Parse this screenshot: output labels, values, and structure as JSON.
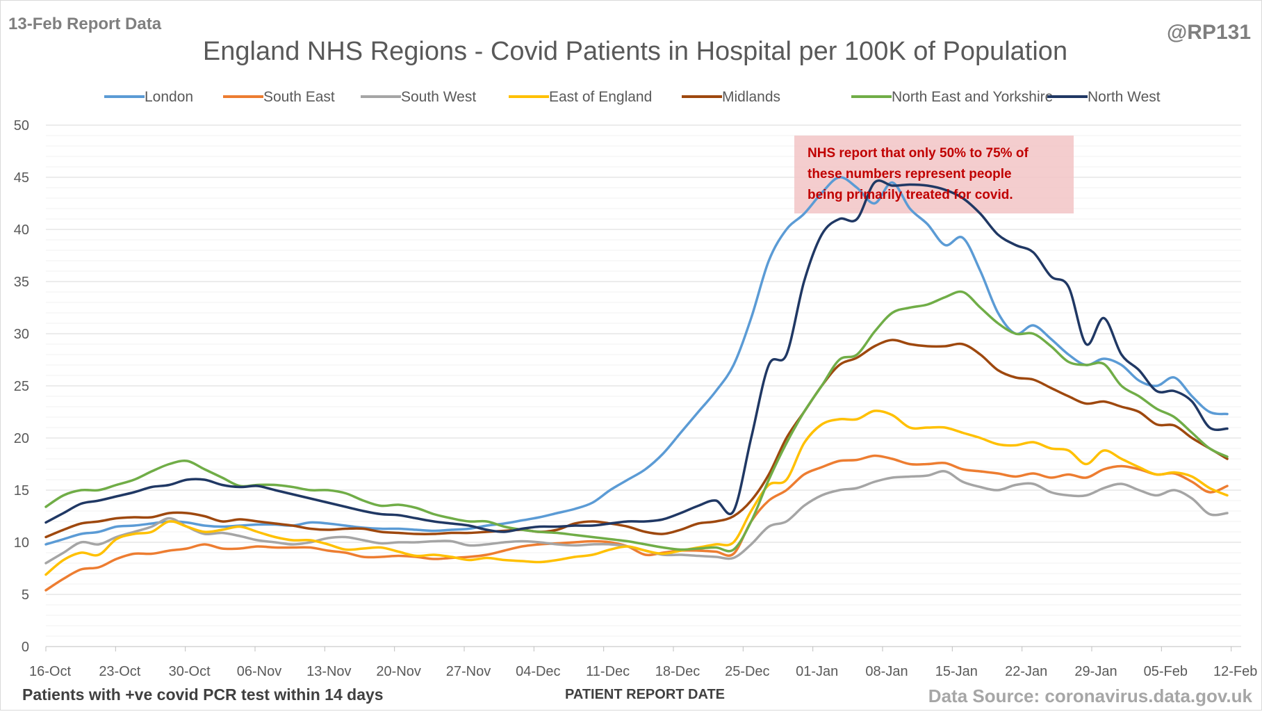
{
  "header": {
    "report_label": "13-Feb Report Data",
    "handle": "@RP131"
  },
  "footer": {
    "left_note": "Patients with +ve covid PCR test within 14 days",
    "source": "Data Source: coronavirus.data.gov.uk"
  },
  "annotation": {
    "lines": [
      "NHS report that only 50% to 75% of",
      "these numbers represent people",
      "being primarily treated for covid."
    ],
    "text_color": "#c00000",
    "box_color": "#f2c4c6"
  },
  "chart_data": {
    "type": "line",
    "title": "England NHS Regions - Covid Patients in Hospital per 100K of Population",
    "xlabel": "PATIENT REPORT DATE",
    "ylabel": "",
    "ylim": [
      0,
      50
    ],
    "yticks": [
      0,
      5,
      10,
      15,
      20,
      25,
      30,
      35,
      40,
      45,
      50
    ],
    "xticks": [
      "16-Oct",
      "23-Oct",
      "30-Oct",
      "06-Nov",
      "13-Nov",
      "20-Nov",
      "27-Nov",
      "04-Dec",
      "11-Dec",
      "18-Dec",
      "25-Dec",
      "01-Jan",
      "08-Jan",
      "15-Jan",
      "22-Jan",
      "29-Jan",
      "05-Feb",
      "12-Feb"
    ],
    "x_start": "16-Oct",
    "x_end": "13-Feb",
    "x_sample": "every 2 days from 16-Oct",
    "grid": true,
    "legend_position": "top",
    "series": [
      {
        "name": "London",
        "color": "#5b9bd5",
        "values": [
          9.8,
          10.3,
          10.8,
          11.0,
          11.5,
          11.6,
          11.8,
          12.0,
          11.9,
          11.6,
          11.5,
          11.6,
          11.7,
          11.7,
          11.6,
          11.9,
          11.8,
          11.6,
          11.4,
          11.3,
          11.3,
          11.2,
          11.1,
          11.2,
          11.3,
          11.6,
          11.8,
          12.1,
          12.4,
          12.8,
          13.2,
          13.8,
          15.0,
          16.0,
          17.0,
          18.5,
          20.5,
          22.5,
          24.5,
          27.0,
          31.5,
          37.0,
          40.0,
          41.5,
          43.5,
          45.0,
          44.0,
          42.5,
          44.5,
          42.0,
          40.5,
          38.5,
          39.2,
          36.0,
          32.0,
          30.0,
          30.8,
          29.5,
          28.0,
          27.0,
          27.6,
          27.0,
          25.5,
          25.0,
          25.8,
          24.0,
          22.5,
          22.3
        ]
      },
      {
        "name": "South East",
        "color": "#ed7d31",
        "values": [
          5.4,
          6.5,
          7.4,
          7.6,
          8.4,
          8.9,
          8.9,
          9.2,
          9.4,
          9.8,
          9.4,
          9.4,
          9.6,
          9.5,
          9.5,
          9.5,
          9.2,
          9.0,
          8.6,
          8.6,
          8.7,
          8.6,
          8.4,
          8.5,
          8.6,
          8.8,
          9.2,
          9.6,
          9.8,
          9.9,
          10.0,
          10.1,
          10.0,
          9.6,
          8.8,
          9.0,
          9.2,
          9.2,
          9.1,
          8.9,
          12.0,
          14.0,
          15.0,
          16.5,
          17.2,
          17.8,
          17.9,
          18.3,
          18.0,
          17.5,
          17.5,
          17.6,
          17.0,
          16.8,
          16.6,
          16.3,
          16.6,
          16.2,
          16.5,
          16.2,
          17.0,
          17.3,
          17.0,
          16.5,
          16.6,
          15.8,
          14.8,
          15.4
        ]
      },
      {
        "name": "South West",
        "color": "#a5a5a5",
        "values": [
          8.0,
          9.0,
          10.0,
          9.8,
          10.5,
          11.0,
          11.5,
          12.3,
          11.5,
          10.8,
          10.9,
          10.6,
          10.2,
          10.0,
          9.8,
          10.0,
          10.4,
          10.5,
          10.2,
          9.9,
          10.0,
          10.0,
          10.1,
          10.1,
          9.7,
          9.8,
          10.0,
          10.1,
          10.0,
          9.8,
          9.7,
          9.8,
          9.8,
          9.6,
          9.2,
          8.8,
          8.8,
          8.7,
          8.6,
          8.5,
          9.8,
          11.5,
          12.0,
          13.5,
          14.5,
          15.0,
          15.2,
          15.8,
          16.2,
          16.3,
          16.4,
          16.8,
          15.8,
          15.3,
          15.0,
          15.5,
          15.6,
          14.8,
          14.5,
          14.5,
          15.2,
          15.6,
          15.0,
          14.5,
          15.0,
          14.2,
          12.7,
          12.8
        ]
      },
      {
        "name": "East of England",
        "color": "#ffc000",
        "values": [
          6.9,
          8.3,
          9.0,
          8.8,
          10.3,
          10.8,
          11.0,
          12.0,
          11.5,
          11.0,
          11.2,
          11.5,
          11.0,
          10.5,
          10.2,
          10.2,
          9.8,
          9.3,
          9.4,
          9.5,
          9.1,
          8.7,
          8.8,
          8.6,
          8.3,
          8.5,
          8.3,
          8.2,
          8.1,
          8.3,
          8.6,
          8.8,
          9.3,
          9.6,
          9.2,
          8.9,
          9.2,
          9.5,
          9.8,
          10.0,
          13.0,
          15.5,
          16.0,
          19.5,
          21.3,
          21.8,
          21.8,
          22.6,
          22.2,
          21.0,
          21.0,
          21.0,
          20.5,
          20.0,
          19.4,
          19.3,
          19.6,
          19.0,
          18.8,
          17.5,
          18.8,
          18.0,
          17.2,
          16.5,
          16.7,
          16.3,
          15.2,
          14.5
        ]
      },
      {
        "name": "Midlands",
        "color": "#9e480e",
        "values": [
          10.5,
          11.2,
          11.8,
          12.0,
          12.3,
          12.4,
          12.4,
          12.8,
          12.8,
          12.5,
          12.0,
          12.2,
          12.0,
          11.8,
          11.6,
          11.3,
          11.2,
          11.3,
          11.3,
          11.0,
          10.9,
          10.8,
          10.8,
          10.9,
          10.9,
          11.0,
          11.1,
          11.2,
          11.0,
          11.2,
          11.8,
          12.0,
          11.8,
          11.5,
          11.0,
          10.8,
          11.2,
          11.8,
          12.0,
          12.5,
          14.0,
          16.5,
          20.0,
          22.5,
          25.0,
          27.0,
          27.7,
          28.8,
          29.4,
          29.0,
          28.8,
          28.8,
          29.0,
          28.0,
          26.5,
          25.8,
          25.6,
          24.8,
          24.0,
          23.3,
          23.5,
          23.0,
          22.5,
          21.3,
          21.2,
          20.0,
          19.0,
          18.0
        ]
      },
      {
        "name": "North East and Yorkshire",
        "color": "#70ad47",
        "values": [
          13.4,
          14.5,
          15.0,
          15.0,
          15.5,
          16.0,
          16.8,
          17.5,
          17.8,
          17.0,
          16.2,
          15.4,
          15.5,
          15.5,
          15.3,
          15.0,
          15.0,
          14.7,
          14.0,
          13.5,
          13.6,
          13.3,
          12.7,
          12.3,
          12.0,
          12.0,
          11.5,
          11.2,
          11.0,
          10.9,
          10.7,
          10.5,
          10.3,
          10.1,
          9.8,
          9.5,
          9.3,
          9.4,
          9.5,
          9.3,
          12.0,
          16.0,
          19.5,
          22.5,
          25.0,
          27.5,
          28.0,
          30.2,
          32.0,
          32.5,
          32.8,
          33.5,
          34.0,
          32.5,
          31.0,
          30.0,
          30.0,
          28.8,
          27.3,
          27.0,
          27.1,
          25.0,
          24.0,
          22.8,
          22.0,
          20.5,
          19.0,
          18.2
        ]
      },
      {
        "name": "North West",
        "color": "#203864",
        "values": [
          11.9,
          12.8,
          13.7,
          14.0,
          14.4,
          14.8,
          15.3,
          15.5,
          16.0,
          16.0,
          15.5,
          15.3,
          15.4,
          15.0,
          14.6,
          14.2,
          13.8,
          13.4,
          13.0,
          12.7,
          12.6,
          12.3,
          12.0,
          11.8,
          11.6,
          11.2,
          11.0,
          11.3,
          11.5,
          11.5,
          11.6,
          11.6,
          11.8,
          12.0,
          12.0,
          12.2,
          12.8,
          13.5,
          14.0,
          13.0,
          20.0,
          27.0,
          28.0,
          35.0,
          39.5,
          41.0,
          41.0,
          44.5,
          44.2,
          44.3,
          44.2,
          43.8,
          43.0,
          41.5,
          39.5,
          38.5,
          37.8,
          35.5,
          34.5,
          29.0,
          31.5,
          28.0,
          26.5,
          24.5,
          24.5,
          23.5,
          21.0,
          20.9
        ]
      }
    ]
  }
}
